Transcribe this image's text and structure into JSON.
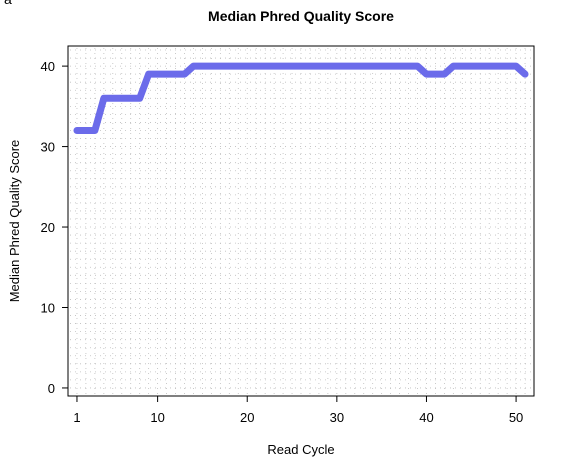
{
  "corner_label": "a",
  "chart_data": {
    "type": "line",
    "title": "Median Phred Quality Score",
    "xlabel": "Read Cycle",
    "ylabel": "Median Phred Quality Score",
    "xlim": [
      0,
      52
    ],
    "ylim": [
      -1,
      42.5
    ],
    "xticks": [
      1,
      10,
      20,
      30,
      40,
      50
    ],
    "yticks": [
      0,
      10,
      20,
      30,
      40
    ],
    "grid": true,
    "series": [
      {
        "color": "#6b6bea",
        "x": [
          1,
          2,
          3,
          4,
          5,
          6,
          7,
          8,
          9,
          10,
          11,
          12,
          13,
          14,
          15,
          16,
          17,
          18,
          19,
          20,
          21,
          22,
          23,
          24,
          25,
          26,
          27,
          28,
          29,
          30,
          31,
          32,
          33,
          34,
          35,
          36,
          37,
          38,
          39,
          40,
          41,
          42,
          43,
          44,
          45,
          46,
          47,
          48,
          49,
          50,
          51
        ],
        "values": [
          32,
          32,
          32,
          36,
          36,
          36,
          36,
          36,
          39,
          39,
          39,
          39,
          39,
          40,
          40,
          40,
          40,
          40,
          40,
          40,
          40,
          40,
          40,
          40,
          40,
          40,
          40,
          40,
          40,
          40,
          40,
          40,
          40,
          40,
          40,
          40,
          40,
          40,
          40,
          39,
          39,
          39,
          40,
          40,
          40,
          40,
          40,
          40,
          40,
          40,
          39
        ]
      }
    ]
  }
}
